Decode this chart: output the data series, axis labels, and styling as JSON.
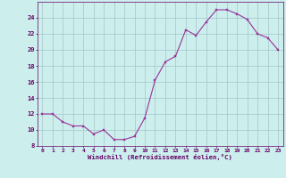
{
  "x": [
    0,
    1,
    2,
    3,
    4,
    5,
    6,
    7,
    8,
    9,
    10,
    11,
    12,
    13,
    14,
    15,
    16,
    17,
    18,
    19,
    20,
    21,
    22,
    23
  ],
  "y": [
    12,
    12,
    11,
    10.5,
    10.5,
    9.5,
    10,
    8.8,
    8.8,
    9.2,
    11.5,
    16.2,
    18.5,
    19.2,
    22.5,
    21.8,
    23.5,
    25,
    25,
    24.5,
    23.8,
    22,
    21.5,
    20
  ],
  "line_color": "#993399",
  "marker": "s",
  "marker_size": 2.0,
  "bg_color": "#cceeed",
  "grid_color": "#aacccc",
  "xlabel": "Windchill (Refroidissement éolien,°C)",
  "xlabel_color": "#660066",
  "tick_color": "#660066",
  "ylim": [
    8,
    26
  ],
  "xlim": [
    -0.5,
    23.5
  ],
  "yticks": [
    8,
    10,
    12,
    14,
    16,
    18,
    20,
    22,
    24
  ],
  "xticks": [
    0,
    1,
    2,
    3,
    4,
    5,
    6,
    7,
    8,
    9,
    10,
    11,
    12,
    13,
    14,
    15,
    16,
    17,
    18,
    19,
    20,
    21,
    22,
    23
  ]
}
